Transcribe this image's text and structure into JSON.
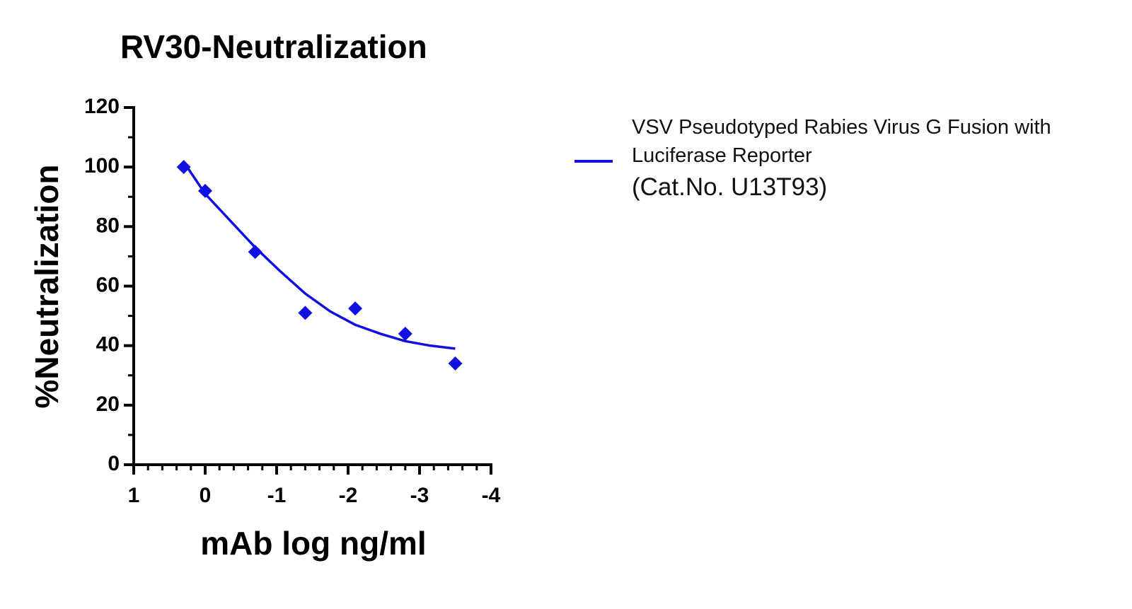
{
  "chart_data": {
    "type": "scatter",
    "title": "RV30-Neutralization",
    "x_label": "mAb log ng/ml",
    "y_label": "%Neutralization",
    "series": [
      {
        "color": "#1010e0",
        "marker": "diamond",
        "x": [
          0.3,
          0,
          -0.7,
          -1.4,
          -2.1,
          -2.8,
          -3.5
        ],
        "values": [
          100,
          92,
          71.5,
          51,
          52.5,
          44,
          34
        ]
      },
      {
        "name": "VSV Pseudotyped Rabies Virus G Fusion with Luciferase Reporter",
        "color": "#1010e0",
        "style": "line",
        "x": [
          0.3,
          0,
          -0.35,
          -0.7,
          -1.05,
          -1.4,
          -1.75,
          -2.1,
          -2.45,
          -2.8,
          -3.15,
          -3.5
        ],
        "values": [
          101.7,
          91,
          82,
          73,
          65,
          57.5,
          51.5,
          47,
          44,
          41.5,
          40,
          39
        ]
      }
    ],
    "legend_note": "(Cat.No. U13T93)",
    "xlim": [
      1,
      -4
    ],
    "xticks": [
      1,
      0,
      -1,
      -2,
      -3,
      -4
    ],
    "x_minor_divisions": 5,
    "ylim": [
      0,
      120
    ],
    "yticks": [
      0,
      20,
      40,
      60,
      80,
      100,
      120
    ],
    "y_minor_divisions": 2,
    "grid": false
  }
}
